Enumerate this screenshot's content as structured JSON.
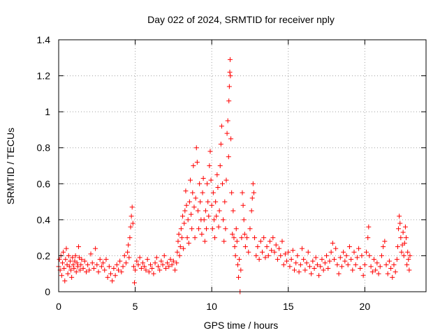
{
  "chart_data": {
    "type": "scatter",
    "title": "Day 022 of 2024, SRMTID for receiver nply",
    "xlabel": "GPS time / hours",
    "ylabel": "SRMTID / TECUs",
    "xlim": [
      0,
      24
    ],
    "ylim": [
      0,
      1.4
    ],
    "xticks": [
      0,
      5,
      10,
      15,
      20
    ],
    "yticks": [
      0,
      0.2,
      0.4,
      0.6,
      0.8,
      1,
      1.2,
      1.4
    ],
    "xtick_labels": [
      "0",
      "5",
      "10",
      "15",
      "20"
    ],
    "ytick_labels": [
      "0",
      "0.2",
      "0.4",
      "0.6",
      "0.8",
      "1",
      "1.2",
      "1.4"
    ],
    "grid": true,
    "marker": "+",
    "series": [
      {
        "name": "nply",
        "color": "#ff0000",
        "points": [
          [
            0.0,
            0.14
          ],
          [
            0.05,
            0.18
          ],
          [
            0.1,
            0.12
          ],
          [
            0.15,
            0.2
          ],
          [
            0.2,
            0.09
          ],
          [
            0.25,
            0.16
          ],
          [
            0.3,
            0.22
          ],
          [
            0.35,
            0.13
          ],
          [
            0.4,
            0.06
          ],
          [
            0.45,
            0.18
          ],
          [
            0.5,
            0.24
          ],
          [
            0.55,
            0.15
          ],
          [
            0.6,
            0.1
          ],
          [
            0.65,
            0.2
          ],
          [
            0.7,
            0.14
          ],
          [
            0.75,
            0.17
          ],
          [
            0.8,
            0.12
          ],
          [
            0.85,
            0.08
          ],
          [
            0.9,
            0.19
          ],
          [
            0.95,
            0.15
          ],
          [
            1.0,
            0.13
          ],
          [
            1.05,
            0.17
          ],
          [
            1.1,
            0.2
          ],
          [
            1.15,
            0.11
          ],
          [
            1.2,
            0.16
          ],
          [
            1.25,
            0.14
          ],
          [
            1.3,
            0.25
          ],
          [
            1.35,
            0.19
          ],
          [
            1.4,
            0.12
          ],
          [
            1.45,
            0.15
          ],
          [
            1.5,
            0.18
          ],
          [
            1.6,
            0.13
          ],
          [
            1.7,
            0.17
          ],
          [
            1.8,
            0.11
          ],
          [
            1.9,
            0.15
          ],
          [
            2.0,
            0.12
          ],
          [
            2.1,
            0.21
          ],
          [
            2.2,
            0.16
          ],
          [
            2.3,
            0.13
          ],
          [
            2.4,
            0.24
          ],
          [
            2.5,
            0.15
          ],
          [
            2.6,
            0.11
          ],
          [
            2.7,
            0.18
          ],
          [
            2.8,
            0.14
          ],
          [
            2.9,
            0.16
          ],
          [
            3.0,
            0.12
          ],
          [
            3.1,
            0.18
          ],
          [
            3.2,
            0.08
          ],
          [
            3.3,
            0.14
          ],
          [
            3.4,
            0.1
          ],
          [
            3.5,
            0.06
          ],
          [
            3.6,
            0.13
          ],
          [
            3.7,
            0.09
          ],
          [
            3.8,
            0.15
          ],
          [
            3.9,
            0.12
          ],
          [
            4.0,
            0.17
          ],
          [
            4.1,
            0.11
          ],
          [
            4.2,
            0.14
          ],
          [
            4.3,
            0.2
          ],
          [
            4.4,
            0.16
          ],
          [
            4.5,
            0.22
          ],
          [
            4.55,
            0.26
          ],
          [
            4.6,
            0.19
          ],
          [
            4.65,
            0.3
          ],
          [
            4.7,
            0.36
          ],
          [
            4.75,
            0.42
          ],
          [
            4.8,
            0.47
          ],
          [
            4.85,
            0.38
          ],
          [
            4.9,
            0.14
          ],
          [
            4.95,
            0.05
          ],
          [
            5.0,
            0.12
          ],
          [
            5.1,
            0.17
          ],
          [
            5.2,
            0.15
          ],
          [
            5.3,
            0.19
          ],
          [
            5.4,
            0.13
          ],
          [
            5.5,
            0.16
          ],
          [
            5.6,
            0.14
          ],
          [
            5.7,
            0.12
          ],
          [
            5.8,
            0.18
          ],
          [
            5.9,
            0.11
          ],
          [
            6.0,
            0.15
          ],
          [
            6.1,
            0.13
          ],
          [
            6.2,
            0.1
          ],
          [
            6.3,
            0.16
          ],
          [
            6.4,
            0.19
          ],
          [
            6.5,
            0.14
          ],
          [
            6.6,
            0.12
          ],
          [
            6.7,
            0.17
          ],
          [
            6.8,
            0.15
          ],
          [
            6.9,
            0.2
          ],
          [
            7.0,
            0.13
          ],
          [
            7.1,
            0.16
          ],
          [
            7.2,
            0.14
          ],
          [
            7.3,
            0.18
          ],
          [
            7.4,
            0.15
          ],
          [
            7.5,
            0.17
          ],
          [
            7.6,
            0.12
          ],
          [
            7.7,
            0.16
          ],
          [
            7.75,
            0.22
          ],
          [
            7.8,
            0.28
          ],
          [
            7.85,
            0.32
          ],
          [
            7.9,
            0.2
          ],
          [
            7.95,
            0.25
          ],
          [
            8.0,
            0.35
          ],
          [
            8.05,
            0.3
          ],
          [
            8.1,
            0.42
          ],
          [
            8.15,
            0.24
          ],
          [
            8.2,
            0.38
          ],
          [
            8.25,
            0.45
          ],
          [
            8.3,
            0.56
          ],
          [
            8.35,
            0.48
          ],
          [
            8.4,
            0.3
          ],
          [
            8.45,
            0.4
          ],
          [
            8.5,
            0.27
          ],
          [
            8.55,
            0.5
          ],
          [
            8.6,
            0.62
          ],
          [
            8.65,
            0.43
          ],
          [
            8.7,
            0.35
          ],
          [
            8.75,
            0.55
          ],
          [
            8.8,
            0.7
          ],
          [
            8.85,
            0.47
          ],
          [
            8.9,
            0.3
          ],
          [
            8.95,
            0.52
          ],
          [
            9.0,
            0.8
          ],
          [
            9.05,
            0.72
          ],
          [
            9.1,
            0.45
          ],
          [
            9.15,
            0.35
          ],
          [
            9.2,
            0.6
          ],
          [
            9.25,
            0.5
          ],
          [
            9.3,
            0.4
          ],
          [
            9.35,
            0.32
          ],
          [
            9.4,
            0.55
          ],
          [
            9.45,
            0.63
          ],
          [
            9.5,
            0.4
          ],
          [
            9.55,
            0.28
          ],
          [
            9.6,
            0.45
          ],
          [
            9.65,
            0.35
          ],
          [
            9.7,
            0.6
          ],
          [
            9.75,
            0.5
          ],
          [
            9.8,
            0.42
          ],
          [
            9.85,
            0.7
          ],
          [
            9.9,
            0.78
          ],
          [
            9.95,
            0.62
          ],
          [
            10.0,
            0.48
          ],
          [
            10.05,
            0.35
          ],
          [
            10.1,
            0.55
          ],
          [
            10.15,
            0.4
          ],
          [
            10.2,
            0.3
          ],
          [
            10.25,
            0.5
          ],
          [
            10.3,
            0.42
          ],
          [
            10.35,
            0.65
          ],
          [
            10.4,
            0.58
          ],
          [
            10.45,
            0.36
          ],
          [
            10.5,
            0.45
          ],
          [
            10.55,
            0.7
          ],
          [
            10.6,
            0.82
          ],
          [
            10.65,
            0.92
          ],
          [
            10.7,
            0.6
          ],
          [
            10.75,
            0.4
          ],
          [
            10.8,
            0.28
          ],
          [
            10.85,
            0.5
          ],
          [
            10.9,
            0.35
          ],
          [
            10.95,
            0.62
          ],
          [
            11.0,
            0.88
          ],
          [
            11.05,
            0.95
          ],
          [
            11.1,
            0.75
          ],
          [
            11.12,
            1.06
          ],
          [
            11.15,
            1.14
          ],
          [
            11.18,
            1.22
          ],
          [
            11.2,
            1.29
          ],
          [
            11.22,
            1.2
          ],
          [
            11.25,
            0.85
          ],
          [
            11.3,
            0.55
          ],
          [
            11.35,
            0.32
          ],
          [
            11.4,
            0.45
          ],
          [
            11.45,
            0.3
          ],
          [
            11.5,
            0.25
          ],
          [
            11.55,
            0.2
          ],
          [
            11.6,
            0.35
          ],
          [
            11.65,
            0.28
          ],
          [
            11.7,
            0.15
          ],
          [
            11.75,
            0.08
          ],
          [
            11.8,
            0.18
          ],
          [
            11.85,
            0.0
          ],
          [
            11.9,
            0.12
          ],
          [
            11.95,
            0.3
          ],
          [
            12.0,
            0.55
          ],
          [
            12.05,
            0.48
          ],
          [
            12.1,
            0.4
          ],
          [
            12.15,
            0.32
          ],
          [
            12.2,
            0.25
          ],
          [
            12.3,
            0.3
          ],
          [
            12.4,
            0.22
          ],
          [
            12.5,
            0.35
          ],
          [
            12.6,
            0.45
          ],
          [
            12.65,
            0.52
          ],
          [
            12.7,
            0.6
          ],
          [
            12.75,
            0.55
          ],
          [
            12.8,
            0.3
          ],
          [
            12.9,
            0.2
          ],
          [
            13.0,
            0.25
          ],
          [
            13.1,
            0.18
          ],
          [
            13.2,
            0.28
          ],
          [
            13.3,
            0.22
          ],
          [
            13.4,
            0.3
          ],
          [
            13.5,
            0.19
          ],
          [
            13.6,
            0.25
          ],
          [
            13.7,
            0.2
          ],
          [
            13.8,
            0.28
          ],
          [
            13.9,
            0.23
          ],
          [
            14.0,
            0.3
          ],
          [
            14.1,
            0.22
          ],
          [
            14.2,
            0.26
          ],
          [
            14.3,
            0.18
          ],
          [
            14.4,
            0.24
          ],
          [
            14.5,
            0.2
          ],
          [
            14.6,
            0.28
          ],
          [
            14.7,
            0.15
          ],
          [
            14.8,
            0.21
          ],
          [
            14.9,
            0.17
          ],
          [
            15.0,
            0.22
          ],
          [
            15.1,
            0.14
          ],
          [
            15.2,
            0.18
          ],
          [
            15.3,
            0.23
          ],
          [
            15.4,
            0.12
          ],
          [
            15.5,
            0.16
          ],
          [
            15.6,
            0.2
          ],
          [
            15.7,
            0.11
          ],
          [
            15.8,
            0.15
          ],
          [
            15.9,
            0.24
          ],
          [
            16.0,
            0.18
          ],
          [
            16.1,
            0.12
          ],
          [
            16.2,
            0.16
          ],
          [
            16.3,
            0.22
          ],
          [
            16.4,
            0.14
          ],
          [
            16.5,
            0.1
          ],
          [
            16.6,
            0.17
          ],
          [
            16.7,
            0.13
          ],
          [
            16.8,
            0.19
          ],
          [
            16.9,
            0.15
          ],
          [
            17.0,
            0.09
          ],
          [
            17.1,
            0.14
          ],
          [
            17.2,
            0.18
          ],
          [
            17.3,
            0.12
          ],
          [
            17.4,
            0.16
          ],
          [
            17.5,
            0.2
          ],
          [
            17.6,
            0.13
          ],
          [
            17.7,
            0.17
          ],
          [
            17.8,
            0.22
          ],
          [
            17.9,
            0.27
          ],
          [
            18.0,
            0.18
          ],
          [
            18.1,
            0.24
          ],
          [
            18.2,
            0.15
          ],
          [
            18.3,
            0.1
          ],
          [
            18.4,
            0.19
          ],
          [
            18.5,
            0.14
          ],
          [
            18.6,
            0.22
          ],
          [
            18.7,
            0.17
          ],
          [
            18.8,
            0.2
          ],
          [
            18.9,
            0.15
          ],
          [
            19.0,
            0.25
          ],
          [
            19.1,
            0.18
          ],
          [
            19.2,
            0.12
          ],
          [
            19.3,
            0.22
          ],
          [
            19.4,
            0.15
          ],
          [
            19.5,
            0.19
          ],
          [
            19.6,
            0.24
          ],
          [
            19.7,
            0.13
          ],
          [
            19.8,
            0.2
          ],
          [
            19.9,
            0.09
          ],
          [
            20.0,
            0.15
          ],
          [
            20.1,
            0.22
          ],
          [
            20.2,
            0.3
          ],
          [
            20.25,
            0.36
          ],
          [
            20.3,
            0.2
          ],
          [
            20.4,
            0.14
          ],
          [
            20.5,
            0.11
          ],
          [
            20.6,
            0.18
          ],
          [
            20.7,
            0.12
          ],
          [
            20.8,
            0.16
          ],
          [
            20.9,
            0.1
          ],
          [
            21.0,
            0.14
          ],
          [
            21.1,
            0.2
          ],
          [
            21.2,
            0.25
          ],
          [
            21.3,
            0.28
          ],
          [
            21.4,
            0.15
          ],
          [
            21.5,
            0.1
          ],
          [
            21.6,
            0.17
          ],
          [
            21.7,
            0.13
          ],
          [
            21.8,
            0.08
          ],
          [
            21.9,
            0.15
          ],
          [
            22.0,
            0.11
          ],
          [
            22.1,
            0.18
          ],
          [
            22.15,
            0.25
          ],
          [
            22.2,
            0.35
          ],
          [
            22.25,
            0.42
          ],
          [
            22.3,
            0.38
          ],
          [
            22.35,
            0.3
          ],
          [
            22.4,
            0.22
          ],
          [
            22.45,
            0.26
          ],
          [
            22.5,
            0.33
          ],
          [
            22.55,
            0.2
          ],
          [
            22.6,
            0.27
          ],
          [
            22.65,
            0.36
          ],
          [
            22.7,
            0.3
          ],
          [
            22.75,
            0.15
          ],
          [
            22.8,
            0.22
          ],
          [
            22.85,
            0.18
          ],
          [
            22.9,
            0.12
          ],
          [
            22.95,
            0.2
          ]
        ]
      }
    ]
  }
}
